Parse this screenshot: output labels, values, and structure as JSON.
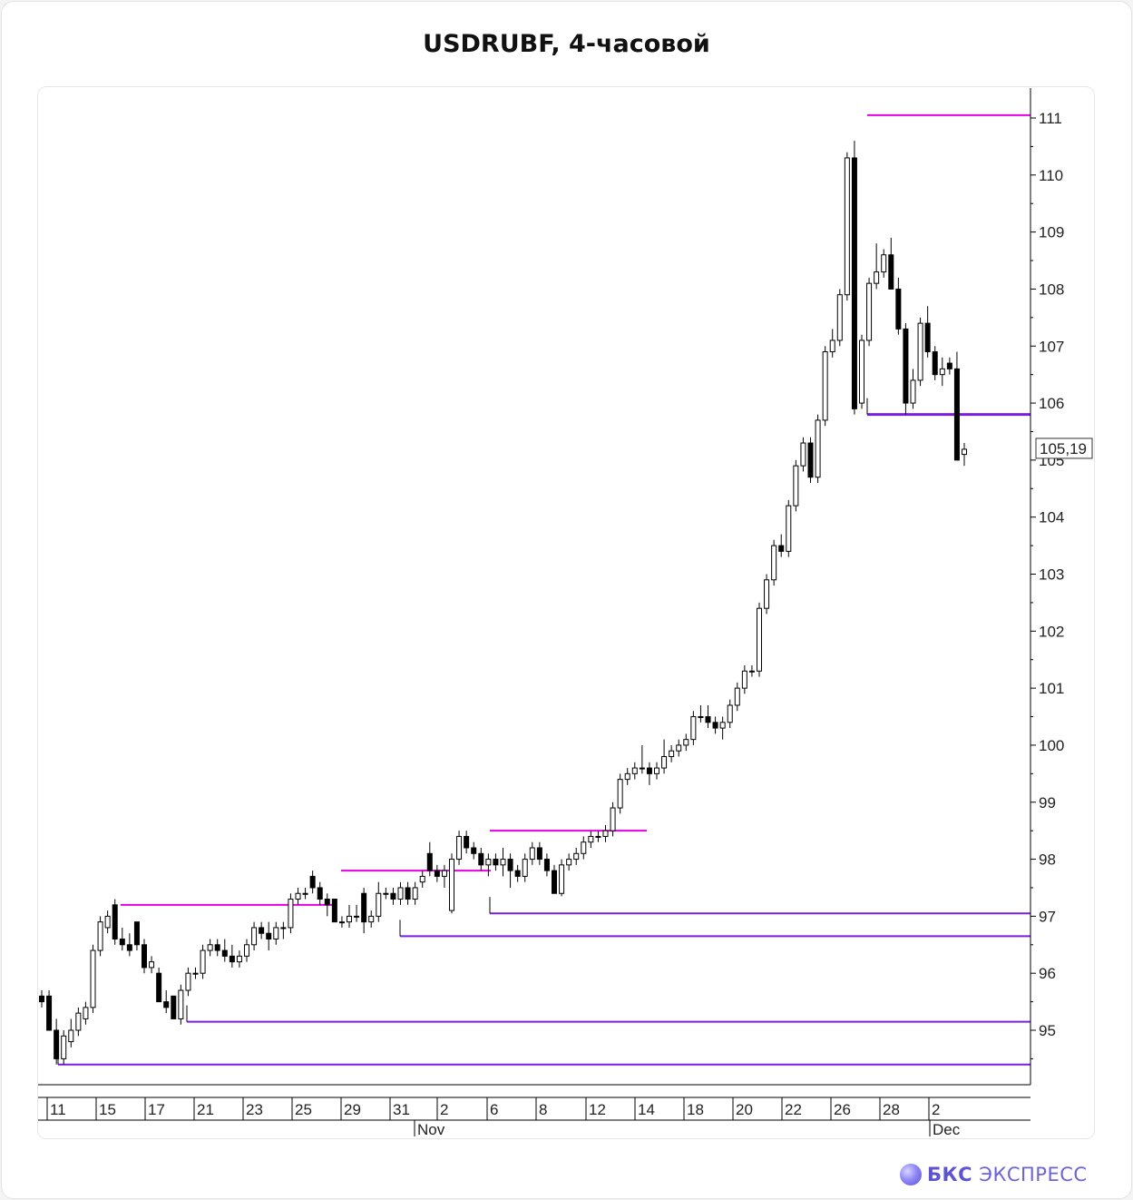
{
  "title": "USDRUBF, 4-часовой",
  "brand": {
    "bold": "БКС",
    "rest": "ЭКСПРЕСС"
  },
  "colors": {
    "resistance": "#e600e6",
    "support": "#7a1fe0",
    "candle": "#000000",
    "axis": "#000000"
  },
  "chart_data": {
    "type": "candlestick",
    "y_range": [
      94.1,
      111.6
    ],
    "y_ticks": [
      "95",
      "96",
      "97",
      "98",
      "99",
      "100",
      "101",
      "102",
      "103",
      "104",
      "105",
      "106",
      "107",
      "108",
      "109",
      "110",
      "111"
    ],
    "x_tick_labels": [
      "11",
      "15",
      "17",
      "21",
      "23",
      "25",
      "29",
      "31",
      "2",
      "6",
      "8",
      "12",
      "14",
      "18",
      "20",
      "22",
      "26",
      "28",
      "2"
    ],
    "month_labels": [
      "Nov",
      "Dec"
    ],
    "last_price_label": "105,19",
    "resistance_levels": [
      {
        "from": "Oct 15",
        "value": 97.2
      },
      {
        "from": "Oct 29",
        "value": 97.8
      },
      {
        "from": "Nov 6",
        "value": 98.5
      },
      {
        "from": "Nov 27",
        "value": 111.05
      }
    ],
    "support_levels": [
      {
        "from": "Oct 11",
        "value": 94.4
      },
      {
        "from": "Oct 21",
        "value": 95.15
      },
      {
        "from": "Oct 31",
        "value": 96.65
      },
      {
        "from": "Nov 6",
        "value": 97.05
      },
      {
        "from": "Nov 27",
        "value": 105.8
      }
    ],
    "ohlc": [
      [
        95.6,
        95.7,
        95.4,
        95.5
      ],
      [
        95.6,
        95.7,
        95.0,
        95.0
      ],
      [
        95.0,
        95.2,
        94.4,
        94.5
      ],
      [
        94.5,
        95.0,
        94.4,
        94.9
      ],
      [
        94.8,
        95.2,
        94.7,
        95.0
      ],
      [
        95.0,
        95.4,
        94.9,
        95.3
      ],
      [
        95.2,
        95.5,
        95.1,
        95.4
      ],
      [
        95.4,
        96.5,
        95.3,
        96.4
      ],
      [
        96.4,
        97.0,
        96.3,
        96.9
      ],
      [
        96.8,
        97.1,
        96.7,
        97.0
      ],
      [
        97.2,
        97.3,
        96.5,
        96.6
      ],
      [
        96.6,
        96.8,
        96.4,
        96.5
      ],
      [
        96.5,
        96.7,
        96.3,
        96.4
      ],
      [
        96.9,
        96.9,
        96.4,
        96.5
      ],
      [
        96.5,
        96.6,
        96.0,
        96.1
      ],
      [
        96.1,
        96.3,
        96.0,
        96.2
      ],
      [
        96.0,
        96.1,
        95.5,
        95.5
      ],
      [
        95.5,
        95.7,
        95.3,
        95.4
      ],
      [
        95.6,
        95.6,
        95.2,
        95.2
      ],
      [
        95.2,
        95.8,
        95.1,
        95.7
      ],
      [
        95.7,
        96.1,
        95.6,
        96.0
      ],
      [
        96.0,
        96.1,
        95.9,
        96.0
      ],
      [
        96.0,
        96.5,
        95.9,
        96.4
      ],
      [
        96.4,
        96.6,
        96.3,
        96.5
      ],
      [
        96.5,
        96.6,
        96.3,
        96.4
      ],
      [
        96.4,
        96.6,
        96.2,
        96.3
      ],
      [
        96.3,
        96.5,
        96.1,
        96.2
      ],
      [
        96.2,
        96.4,
        96.1,
        96.3
      ],
      [
        96.3,
        96.6,
        96.2,
        96.5
      ],
      [
        96.5,
        96.9,
        96.4,
        96.8
      ],
      [
        96.8,
        96.9,
        96.6,
        96.7
      ],
      [
        96.7,
        96.9,
        96.4,
        96.6
      ],
      [
        96.6,
        96.9,
        96.5,
        96.8
      ],
      [
        96.8,
        96.9,
        96.6,
        96.8
      ],
      [
        96.8,
        97.4,
        96.7,
        97.3
      ],
      [
        97.3,
        97.5,
        97.2,
        97.4
      ],
      [
        97.4,
        97.5,
        97.3,
        97.4
      ],
      [
        97.7,
        97.8,
        97.4,
        97.5
      ],
      [
        97.5,
        97.6,
        97.2,
        97.3
      ],
      [
        97.3,
        97.4,
        97.0,
        97.2
      ],
      [
        97.3,
        97.3,
        96.9,
        96.9
      ],
      [
        96.9,
        97.0,
        96.8,
        96.9
      ],
      [
        96.9,
        97.2,
        96.8,
        97.0
      ],
      [
        97.0,
        97.2,
        96.9,
        97.0
      ],
      [
        97.4,
        97.5,
        96.7,
        96.9
      ],
      [
        96.9,
        97.1,
        96.8,
        97.0
      ],
      [
        97.0,
        97.6,
        96.9,
        97.4
      ],
      [
        97.4,
        97.5,
        97.3,
        97.4
      ],
      [
        97.4,
        97.5,
        97.2,
        97.3
      ],
      [
        97.3,
        97.6,
        97.2,
        97.5
      ],
      [
        97.5,
        97.6,
        97.2,
        97.3
      ],
      [
        97.3,
        97.6,
        97.2,
        97.5
      ],
      [
        97.6,
        97.8,
        97.5,
        97.7
      ],
      [
        98.1,
        98.3,
        97.7,
        97.8
      ],
      [
        97.8,
        97.9,
        97.6,
        97.7
      ],
      [
        97.7,
        97.9,
        97.5,
        97.8
      ],
      [
        97.1,
        98.1,
        97.05,
        98.0
      ],
      [
        98.0,
        98.5,
        97.9,
        98.4
      ],
      [
        98.4,
        98.5,
        98.1,
        98.2
      ],
      [
        98.2,
        98.3,
        98.0,
        98.1
      ],
      [
        98.1,
        98.2,
        97.8,
        97.9
      ],
      [
        97.9,
        98.1,
        97.7,
        98.0
      ],
      [
        98.0,
        98.1,
        97.8,
        97.9
      ],
      [
        97.9,
        98.2,
        97.7,
        98.0
      ],
      [
        98.0,
        98.1,
        97.5,
        97.8
      ],
      [
        97.8,
        97.9,
        97.6,
        97.7
      ],
      [
        97.7,
        98.1,
        97.6,
        98.0
      ],
      [
        98.0,
        98.3,
        97.9,
        98.2
      ],
      [
        98.2,
        98.3,
        97.9,
        98.0
      ],
      [
        98.0,
        98.1,
        97.7,
        97.8
      ],
      [
        97.8,
        97.9,
        97.4,
        97.4
      ],
      [
        97.4,
        98.0,
        97.35,
        97.9
      ],
      [
        97.9,
        98.1,
        97.8,
        98.0
      ],
      [
        98.0,
        98.2,
        97.9,
        98.1
      ],
      [
        98.1,
        98.4,
        98.0,
        98.3
      ],
      [
        98.3,
        98.5,
        98.2,
        98.4
      ],
      [
        98.4,
        98.5,
        98.3,
        98.4
      ],
      [
        98.4,
        98.6,
        98.3,
        98.5
      ],
      [
        98.5,
        99.0,
        98.4,
        98.9
      ],
      [
        98.9,
        99.5,
        98.8,
        99.4
      ],
      [
        99.4,
        99.6,
        99.3,
        99.5
      ],
      [
        99.5,
        99.7,
        99.4,
        99.6
      ],
      [
        99.6,
        100.0,
        99.5,
        99.6
      ],
      [
        99.6,
        99.7,
        99.3,
        99.5
      ],
      [
        99.5,
        99.7,
        99.4,
        99.6
      ],
      [
        99.6,
        100.1,
        99.5,
        99.8
      ],
      [
        99.8,
        100.0,
        99.7,
        99.9
      ],
      [
        99.9,
        100.1,
        99.8,
        100.0
      ],
      [
        100.0,
        100.2,
        99.9,
        100.1
      ],
      [
        100.1,
        100.6,
        100.0,
        100.5
      ],
      [
        100.5,
        100.7,
        100.4,
        100.5
      ],
      [
        100.5,
        100.7,
        100.3,
        100.4
      ],
      [
        100.4,
        100.5,
        100.2,
        100.3
      ],
      [
        100.3,
        100.5,
        100.1,
        100.4
      ],
      [
        100.4,
        100.8,
        100.3,
        100.7
      ],
      [
        100.7,
        101.1,
        100.6,
        101.0
      ],
      [
        101.0,
        101.4,
        100.9,
        101.3
      ],
      [
        101.3,
        101.4,
        101.2,
        101.3
      ],
      [
        101.3,
        102.5,
        101.2,
        102.4
      ],
      [
        102.4,
        103.0,
        102.3,
        102.9
      ],
      [
        102.9,
        103.6,
        102.8,
        103.5
      ],
      [
        103.5,
        103.7,
        103.3,
        103.4
      ],
      [
        103.4,
        104.3,
        103.3,
        104.2
      ],
      [
        104.2,
        105.0,
        104.1,
        104.9
      ],
      [
        104.9,
        105.4,
        104.8,
        105.3
      ],
      [
        105.3,
        105.4,
        104.6,
        104.7
      ],
      [
        104.7,
        105.8,
        104.6,
        105.7
      ],
      [
        105.7,
        107.0,
        105.6,
        106.9
      ],
      [
        106.9,
        107.3,
        106.8,
        107.1
      ],
      [
        107.1,
        108.0,
        107.0,
        107.9
      ],
      [
        107.9,
        110.4,
        107.8,
        110.3
      ],
      [
        110.3,
        110.6,
        105.8,
        105.9
      ],
      [
        106.0,
        107.2,
        105.9,
        107.1
      ],
      [
        107.1,
        108.2,
        107.0,
        108.1
      ],
      [
        108.1,
        108.8,
        108.0,
        108.3
      ],
      [
        108.3,
        108.7,
        108.2,
        108.6
      ],
      [
        108.6,
        108.9,
        108.0,
        108.0
      ],
      [
        108.0,
        108.2,
        107.2,
        107.3
      ],
      [
        107.3,
        107.4,
        105.8,
        106.0
      ],
      [
        106.0,
        106.6,
        105.9,
        106.4
      ],
      [
        106.4,
        107.5,
        106.3,
        107.4
      ],
      [
        107.4,
        107.7,
        106.8,
        106.9
      ],
      [
        106.9,
        107.0,
        106.4,
        106.5
      ],
      [
        106.5,
        106.8,
        106.3,
        106.6
      ],
      [
        106.7,
        106.8,
        106.5,
        106.6
      ],
      [
        106.6,
        106.9,
        105.0,
        105.0
      ],
      [
        105.1,
        105.3,
        104.9,
        105.19
      ]
    ]
  }
}
